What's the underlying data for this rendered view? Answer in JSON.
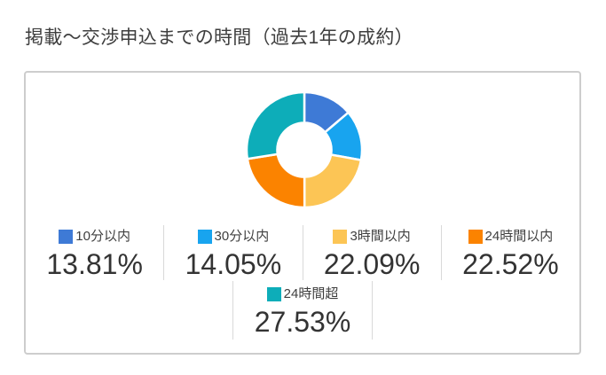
{
  "page": {
    "background": "#ffffff"
  },
  "header": {
    "title": "掲載〜交渉申込までの時間（過去1年の成約）"
  },
  "chart_data": {
    "type": "pie",
    "variant": "donut",
    "title": "掲載〜交渉申込までの時間（過去1年の成約）",
    "categories": [
      "10分以内",
      "30分以内",
      "3時間以内",
      "24時間以内",
      "24時間超"
    ],
    "values": [
      13.81,
      14.05,
      22.09,
      22.52,
      27.53
    ],
    "value_labels": [
      "13.81%",
      "14.05%",
      "22.09%",
      "22.52%",
      "27.53%"
    ],
    "colors": [
      "#3E7AD6",
      "#18A4EF",
      "#FCC555",
      "#FB8300",
      "#0DADB9"
    ],
    "unit": "%",
    "start_angle": "top",
    "direction": "clockwise",
    "hole_ratio": 0.47,
    "segment_gap_color": "#ffffff",
    "legend_position": "bottom",
    "legend_rows": [
      [
        0,
        1,
        2,
        3
      ],
      [
        4
      ]
    ],
    "card_border_color": "#cdcdcd",
    "divider_color": "#d9d9d9",
    "title_color": "#3e3e3e",
    "value_text_color": "#333333",
    "label_text_color": "#3f3f3f"
  }
}
